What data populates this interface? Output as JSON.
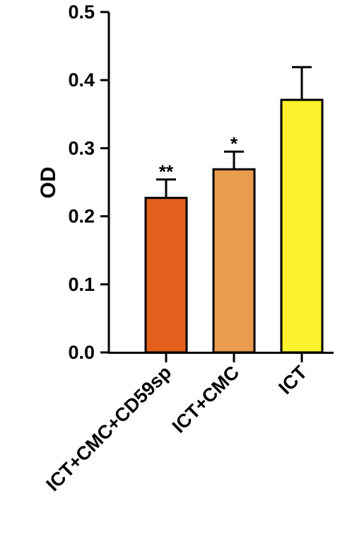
{
  "chart_data": {
    "type": "bar",
    "title": "",
    "xlabel": "",
    "ylabel": "OD",
    "ylim": [
      0,
      0.5
    ],
    "yticks": [
      "0.0",
      "0.1",
      "0.2",
      "0.3",
      "0.4",
      "0.5"
    ],
    "categories": [
      "ICT+CMC+CD59sp",
      "ICT+CMC",
      "ICT"
    ],
    "values": [
      0.227,
      0.269,
      0.371
    ],
    "errors": [
      0.027,
      0.026,
      0.048
    ],
    "significance": [
      "**",
      "*",
      ""
    ],
    "colors": [
      "#e2601c",
      "#e99c4e",
      "#fcf22d"
    ],
    "grid": false,
    "legend": "none"
  }
}
